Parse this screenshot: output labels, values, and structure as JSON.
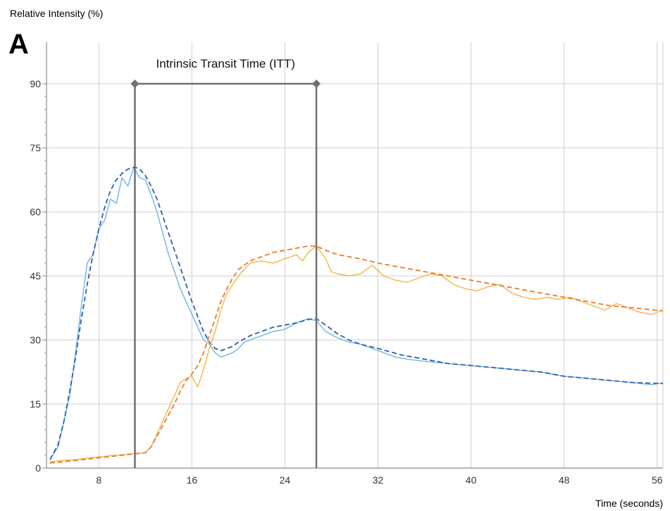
{
  "chart_data": {
    "type": "line",
    "panel_label": "A",
    "ylabel": "Relative Intensity (%)",
    "xlabel": "Time (seconds)",
    "xlim": [
      3.5,
      56.5
    ],
    "ylim": [
      0,
      90
    ],
    "x_ticks": [
      8,
      16,
      24,
      32,
      40,
      48,
      56
    ],
    "y_ticks": [
      0,
      15,
      30,
      45,
      60,
      75,
      90
    ],
    "grid": true,
    "annotation": {
      "text": "Intrinsic Transit Time (ITT)",
      "x_start": 11.1,
      "x_end": 26.7,
      "y": 90
    },
    "series": [
      {
        "style": "solid",
        "color": "#6cb6e8",
        "x": [
          3.8,
          4.5,
          5.0,
          5.5,
          6.0,
          6.5,
          7.0,
          7.5,
          8.0,
          8.5,
          9.0,
          9.5,
          10.0,
          10.5,
          11.0,
          11.5,
          12.0,
          12.5,
          13.0,
          13.5,
          14.0,
          14.5,
          15.0,
          15.5,
          16.0,
          16.5,
          17.0,
          17.5,
          18.0,
          18.5,
          19.0,
          19.5,
          20.0,
          20.5,
          21.0,
          22.0,
          23.0,
          24.0,
          25.0,
          26.0,
          26.7,
          27.5,
          28.5,
          29.5,
          30.5,
          31.5,
          32.5,
          33.5,
          34.5,
          36.0,
          38.0,
          40.0,
          42.0,
          44.0,
          46.0,
          48.0,
          50.0,
          52.0,
          54.0,
          55.5,
          56.5
        ],
        "y": [
          2.0,
          5.0,
          11.0,
          17.0,
          27.0,
          38.0,
          48.0,
          50.0,
          56.0,
          58.0,
          63.0,
          62.0,
          68.0,
          66.0,
          70.5,
          68.0,
          67.5,
          64.0,
          60.0,
          55.0,
          50.0,
          46.0,
          42.0,
          39.0,
          36.0,
          33.0,
          30.0,
          29.0,
          27.0,
          26.0,
          26.5,
          27.0,
          28.0,
          29.5,
          30.0,
          31.0,
          32.0,
          32.5,
          34.0,
          35.0,
          34.5,
          32.0,
          30.5,
          29.5,
          29.0,
          28.0,
          27.0,
          26.0,
          25.5,
          25.0,
          24.5,
          24.0,
          23.5,
          23.0,
          22.5,
          21.5,
          21.0,
          20.5,
          20.0,
          19.5,
          20.0
        ]
      },
      {
        "style": "dashed",
        "color": "#2e5fa8",
        "x": [
          3.8,
          4.5,
          5.0,
          5.5,
          6.0,
          6.5,
          7.0,
          7.5,
          8.0,
          8.5,
          9.0,
          9.5,
          10.0,
          10.5,
          11.1,
          11.5,
          12.0,
          12.5,
          13.0,
          13.5,
          14.0,
          14.5,
          15.0,
          15.5,
          16.0,
          16.5,
          17.0,
          17.5,
          18.0,
          18.5,
          19.0,
          19.5,
          20.0,
          21.0,
          22.0,
          23.0,
          24.0,
          25.0,
          26.0,
          26.7,
          27.5,
          28.5,
          29.5,
          30.5,
          32.0,
          34.0,
          36.0,
          38.0,
          40.0,
          42.0,
          44.0,
          46.0,
          48.0,
          50.0,
          52.0,
          54.0,
          56.5
        ],
        "y": [
          2.0,
          5.5,
          11.0,
          18.0,
          26.0,
          35.0,
          43.0,
          50.0,
          56.0,
          61.0,
          65.0,
          67.5,
          69.0,
          70.0,
          70.5,
          70.0,
          68.5,
          66.0,
          63.0,
          59.0,
          55.0,
          51.0,
          47.0,
          43.0,
          39.0,
          35.5,
          32.0,
          29.5,
          28.0,
          27.5,
          28.0,
          28.5,
          29.5,
          31.0,
          32.0,
          33.0,
          33.5,
          34.0,
          34.8,
          35.0,
          33.5,
          31.5,
          30.0,
          29.0,
          28.0,
          26.5,
          25.5,
          24.5,
          24.0,
          23.5,
          23.0,
          22.5,
          21.5,
          21.0,
          20.5,
          20.0,
          19.8
        ]
      },
      {
        "style": "solid",
        "color": "#f5b44a",
        "x": [
          3.8,
          5.0,
          6.0,
          7.0,
          8.0,
          9.0,
          10.0,
          11.0,
          12.0,
          12.5,
          13.0,
          13.5,
          14.0,
          14.5,
          15.0,
          15.5,
          16.0,
          16.5,
          17.0,
          17.5,
          18.0,
          18.5,
          19.0,
          19.5,
          20.0,
          20.5,
          21.0,
          22.0,
          23.0,
          24.0,
          25.0,
          25.5,
          26.0,
          26.7,
          27.5,
          28.0,
          28.5,
          29.5,
          30.5,
          31.5,
          32.5,
          33.5,
          34.5,
          35.5,
          36.5,
          37.5,
          38.5,
          39.5,
          40.5,
          41.5,
          42.5,
          43.5,
          44.5,
          45.5,
          46.5,
          47.5,
          48.5,
          49.5,
          50.5,
          51.5,
          52.5,
          53.5,
          54.5,
          55.5,
          56.5
        ],
        "y": [
          1.5,
          1.8,
          2.0,
          2.3,
          2.6,
          2.9,
          3.1,
          3.4,
          3.6,
          5.0,
          8.0,
          11.0,
          14.0,
          17.0,
          20.0,
          21.0,
          21.5,
          19.0,
          23.0,
          28.0,
          32.0,
          37.0,
          41.0,
          43.0,
          45.0,
          46.5,
          48.0,
          48.5,
          48.0,
          49.0,
          50.0,
          48.5,
          50.5,
          52.0,
          49.0,
          46.0,
          45.5,
          45.0,
          45.5,
          47.5,
          45.0,
          44.0,
          43.5,
          44.5,
          45.5,
          45.0,
          43.0,
          42.0,
          41.5,
          42.5,
          43.0,
          41.0,
          40.0,
          39.5,
          40.0,
          39.5,
          40.0,
          39.0,
          38.0,
          37.0,
          38.5,
          37.5,
          36.5,
          36.0,
          37.0
        ]
      },
      {
        "style": "dashed",
        "color": "#ec7a2a",
        "x": [
          3.8,
          5.0,
          6.0,
          7.0,
          8.0,
          9.0,
          10.0,
          11.0,
          12.0,
          12.5,
          13.0,
          13.5,
          14.0,
          14.5,
          15.0,
          15.5,
          16.0,
          16.5,
          17.0,
          17.5,
          18.0,
          18.5,
          19.0,
          19.5,
          20.0,
          21.0,
          22.0,
          23.0,
          24.0,
          25.0,
          26.0,
          26.7,
          27.5,
          28.5,
          29.5,
          30.5,
          32.0,
          34.0,
          36.0,
          38.0,
          40.0,
          42.0,
          44.0,
          46.0,
          48.0,
          50.0,
          52.0,
          54.0,
          56.5
        ],
        "y": [
          1.2,
          1.5,
          1.8,
          2.1,
          2.4,
          2.7,
          3.0,
          3.3,
          3.6,
          5.0,
          7.5,
          10.0,
          12.5,
          15.0,
          18.0,
          20.5,
          22.0,
          24.0,
          27.0,
          31.0,
          35.0,
          39.0,
          42.0,
          44.5,
          46.5,
          48.5,
          49.5,
          50.5,
          51.0,
          51.5,
          52.0,
          52.0,
          51.0,
          50.0,
          49.5,
          49.0,
          48.0,
          47.0,
          46.0,
          45.0,
          44.0,
          43.0,
          42.0,
          41.0,
          40.0,
          39.0,
          38.0,
          37.5,
          36.8
        ]
      }
    ]
  }
}
